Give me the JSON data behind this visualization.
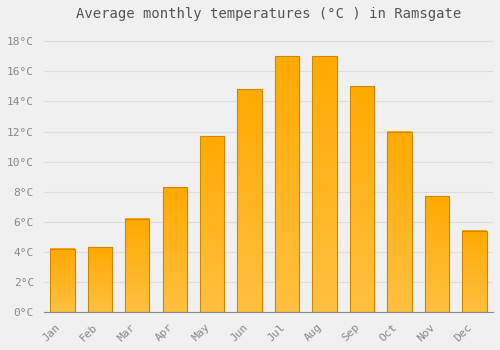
{
  "title": "Average monthly temperatures (°C ) in Ramsgate",
  "months": [
    "Jan",
    "Feb",
    "Mar",
    "Apr",
    "May",
    "Jun",
    "Jul",
    "Aug",
    "Sep",
    "Oct",
    "Nov",
    "Dec"
  ],
  "values": [
    4.2,
    4.3,
    6.2,
    8.3,
    11.7,
    14.8,
    17.0,
    17.0,
    15.0,
    12.0,
    7.7,
    5.4
  ],
  "bar_color_bottom": "#FFC040",
  "bar_color_top": "#FFAA00",
  "bar_edge_color": "#CC8800",
  "background_color": "#F0F0F0",
  "grid_color": "#DDDDDD",
  "tick_color": "#888888",
  "text_color": "#555555",
  "ylim": [
    0,
    19
  ],
  "yticks": [
    0,
    2,
    4,
    6,
    8,
    10,
    12,
    14,
    16,
    18
  ],
  "ytick_labels": [
    "0°C",
    "2°C",
    "4°C",
    "6°C",
    "8°C",
    "10°C",
    "12°C",
    "14°C",
    "16°C",
    "18°C"
  ],
  "title_fontsize": 10,
  "tick_fontsize": 8,
  "font_family": "monospace",
  "bar_width": 0.65
}
